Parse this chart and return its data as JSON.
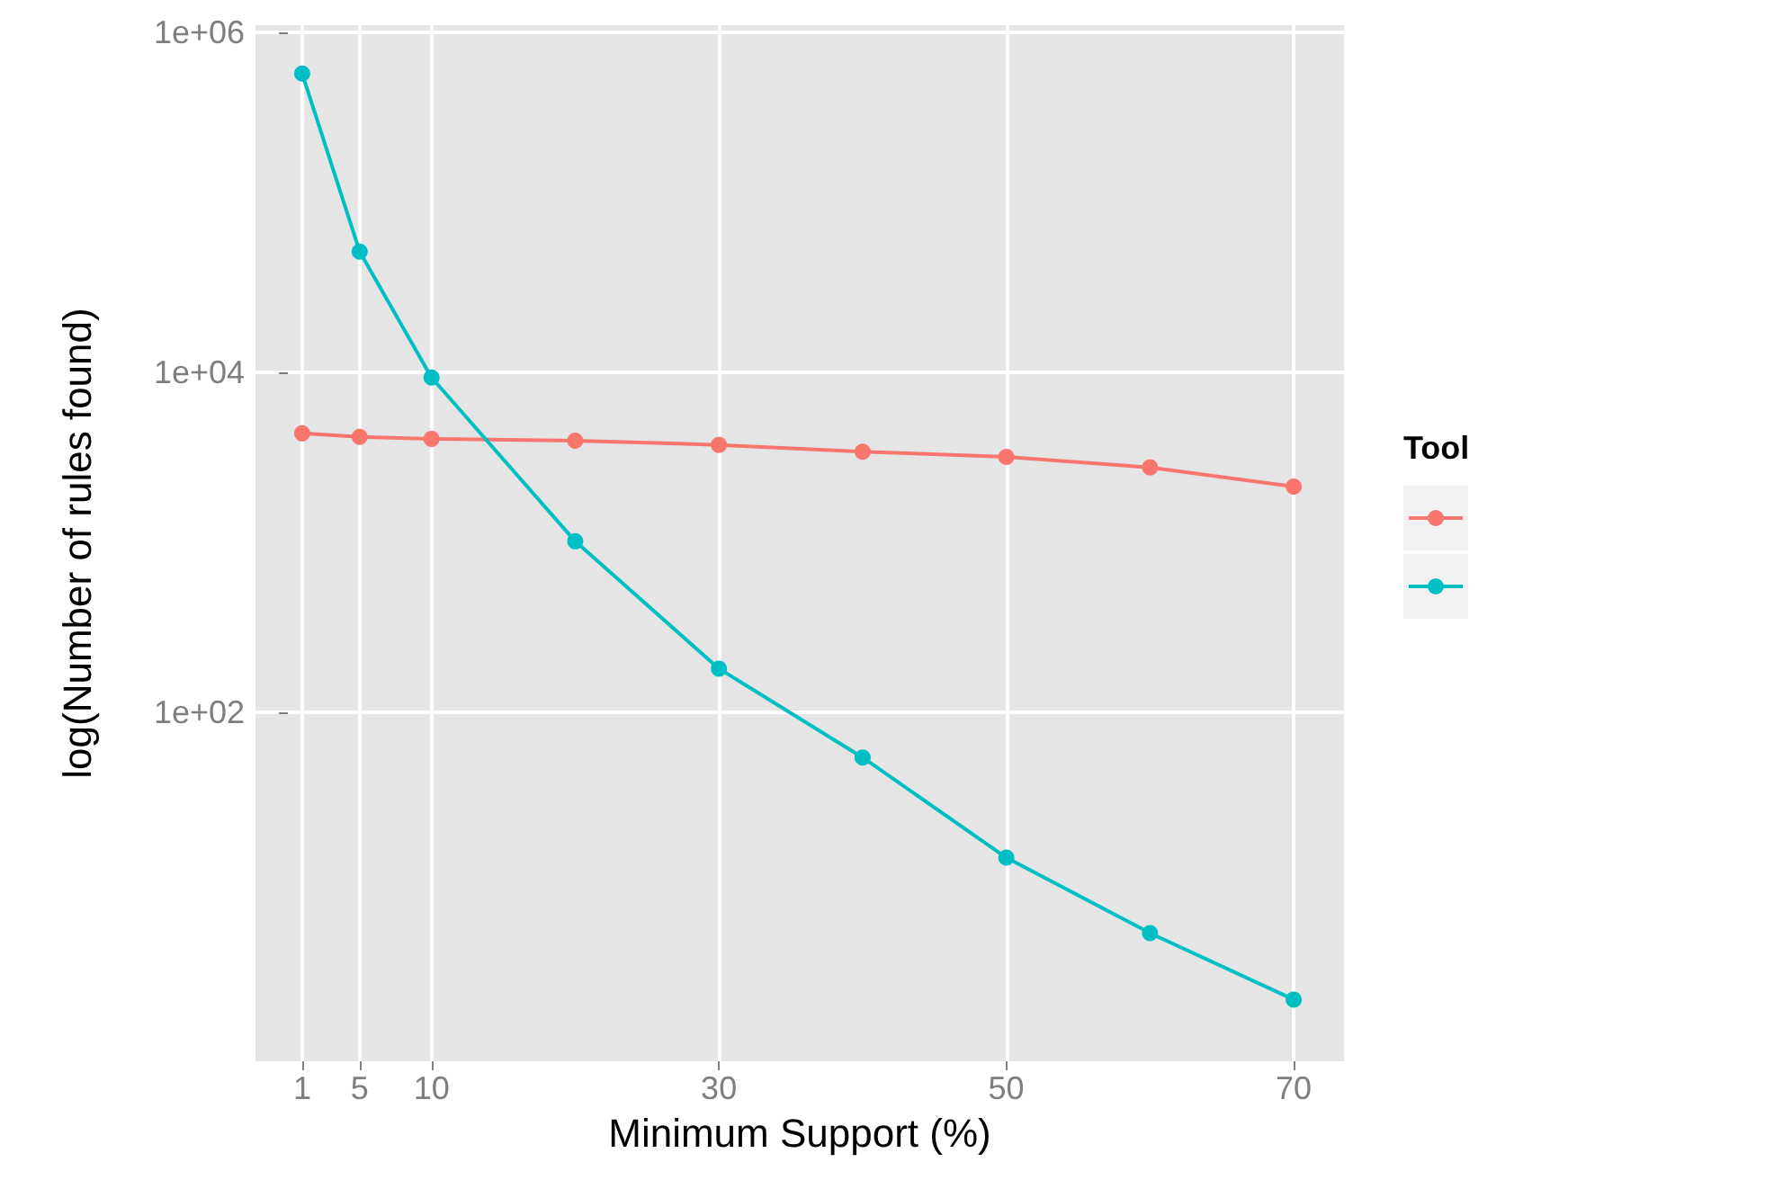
{
  "chart_data": {
    "type": "line",
    "xlabel": "Minimum Support (%)",
    "ylabel": "log(Number of rules found)",
    "annotations": [
      "Tool"
    ],
    "x": [
      1,
      5,
      10,
      20,
      30,
      40,
      50,
      60,
      70
    ],
    "series": [
      {
        "color": "#f8766d",
        "values": [
          4360,
          4160,
          4050,
          3950,
          3730,
          3400,
          3170,
          2750,
          2120
        ]
      },
      {
        "color": "#00bfc4",
        "values": [
          571000,
          51200,
          9290,
          1010,
          180,
          54,
          13.9,
          5.0,
          2.03
        ]
      }
    ],
    "log": "y",
    "xlim": [
      -2.25,
      73.5
    ],
    "ylim": [
      0.88,
      1100000
    ],
    "xticks": [
      1,
      5,
      10,
      30,
      50,
      70
    ],
    "yticks": [
      {
        "value": 100,
        "label": "1e+02"
      },
      {
        "value": 10000,
        "label": "1e+04"
      },
      {
        "value": 1000000,
        "label": "1e+06"
      }
    ],
    "grid": true,
    "marker": "circle",
    "line_style": "solid"
  }
}
